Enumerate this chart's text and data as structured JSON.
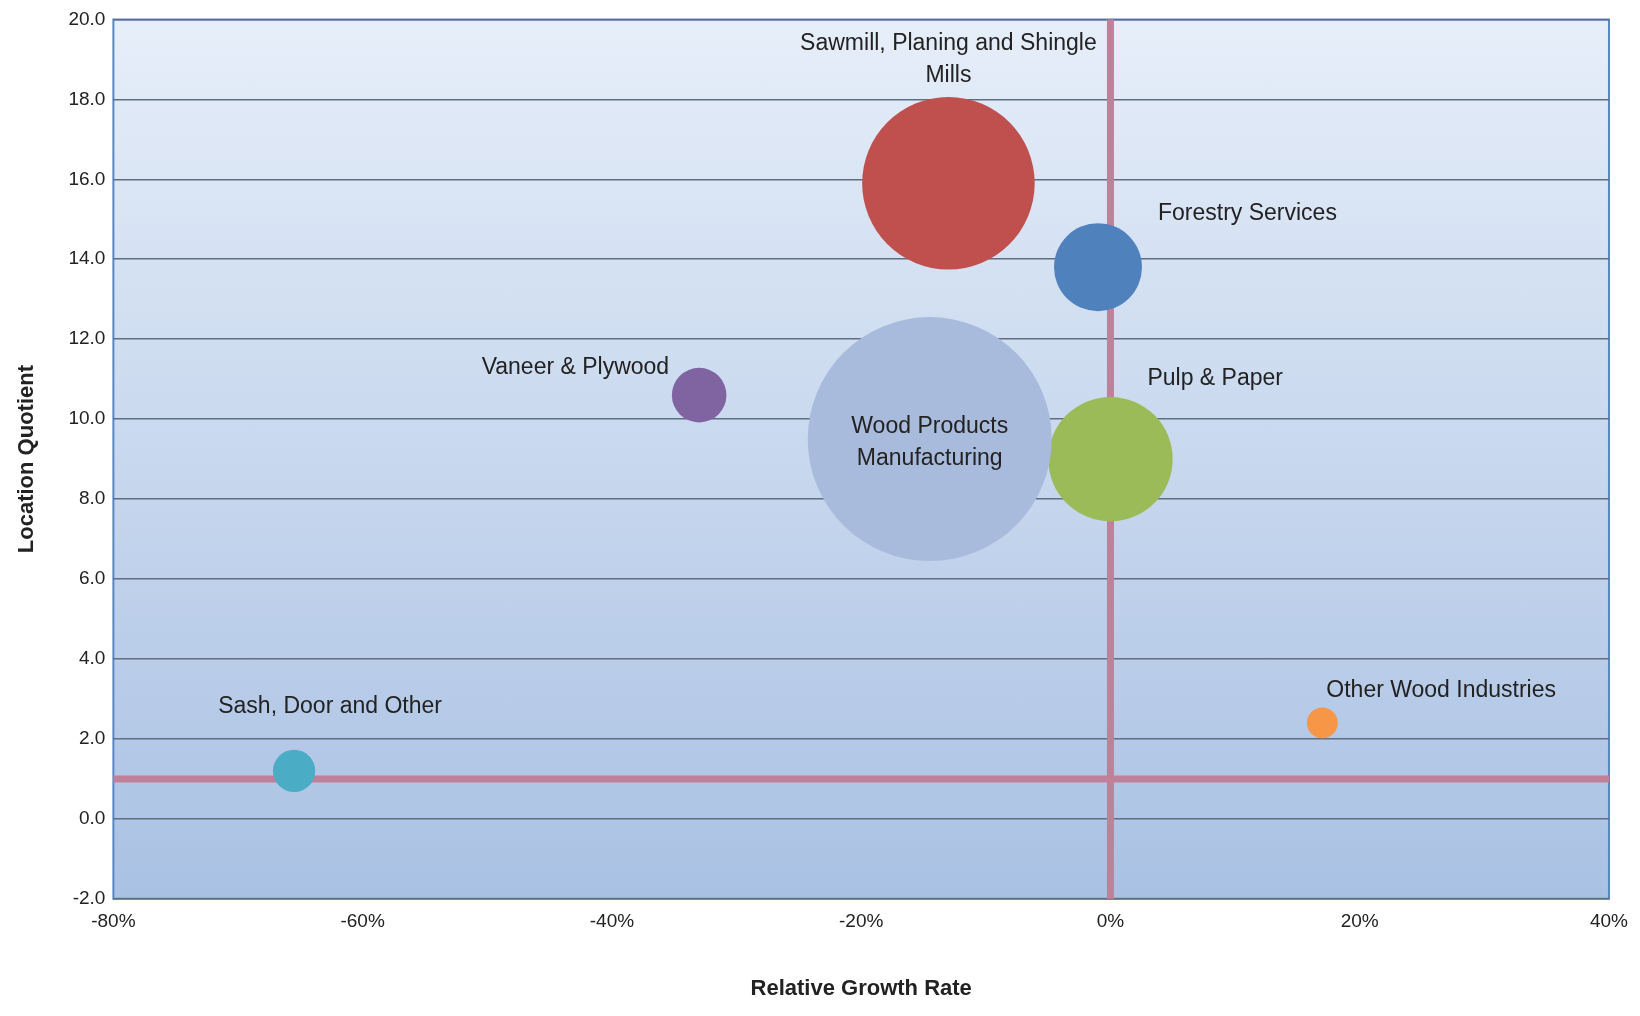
{
  "chart_data": {
    "type": "bubble",
    "xlabel": "Relative Growth Rate",
    "ylabel": "Location Quotient",
    "xlim": [
      -80,
      40
    ],
    "xticks": [
      {
        "value": -80,
        "label": "-80%"
      },
      {
        "value": -60,
        "label": "-60%"
      },
      {
        "value": -40,
        "label": "-40%"
      },
      {
        "value": -20,
        "label": "-20%"
      },
      {
        "value": 0,
        "label": "0%"
      },
      {
        "value": 20,
        "label": "20%"
      },
      {
        "value": 40,
        "label": "40%"
      }
    ],
    "ylim": [
      -2,
      20
    ],
    "yticks": [
      {
        "value": -2,
        "label": "-2.0"
      },
      {
        "value": 0,
        "label": "0.0"
      },
      {
        "value": 2,
        "label": "2.0"
      },
      {
        "value": 4,
        "label": "4.0"
      },
      {
        "value": 6,
        "label": "6.0"
      },
      {
        "value": 8,
        "label": "8.0"
      },
      {
        "value": 10,
        "label": "10.0"
      },
      {
        "value": 12,
        "label": "12.0"
      },
      {
        "value": 14,
        "label": "14.0"
      },
      {
        "value": 16,
        "label": "16.0"
      },
      {
        "value": 18,
        "label": "18.0"
      },
      {
        "value": 20,
        "label": "20.0"
      }
    ],
    "grid": "y",
    "legend": false,
    "ref_lines": [
      {
        "axis": "x",
        "value": 0,
        "color": "#c0809a"
      },
      {
        "axis": "y",
        "value": 1,
        "color": "#c0809a"
      }
    ],
    "series": [
      {
        "name": "Sawmill, Planing and Shingle Mills",
        "color": "#c0504d",
        "x": [
          -13
        ],
        "values": [
          15.9
        ],
        "sizes": [
          0.5
        ]
      },
      {
        "name": "Forestry Services",
        "color": "#4f81bd",
        "x": [
          -1
        ],
        "values": [
          13.8
        ],
        "sizes": [
          0.13
        ]
      },
      {
        "name": "Vaneer & Plywood",
        "color": "#8064a2",
        "x": [
          -33
        ],
        "values": [
          10.6
        ],
        "sizes": [
          0.05
        ]
      },
      {
        "name": "Wood Products Manufacturing",
        "color": "#a9bbdc",
        "x": [
          -14.5
        ],
        "values": [
          9.5
        ],
        "sizes": [
          1
        ]
      },
      {
        "name": "Pulp & Paper",
        "color": "#9bbb59",
        "x": [
          0
        ],
        "values": [
          9
        ],
        "sizes": [
          0.26
        ]
      },
      {
        "name": "Sash, Door and Other",
        "color": "#4bacc6",
        "x": [
          -65.5
        ],
        "values": [
          1.2
        ],
        "sizes": [
          0.03
        ]
      },
      {
        "name": "Other Wood Industries",
        "color": "#f79646",
        "x": [
          17
        ],
        "values": [
          2.4
        ],
        "sizes": [
          0.016
        ]
      }
    ]
  }
}
